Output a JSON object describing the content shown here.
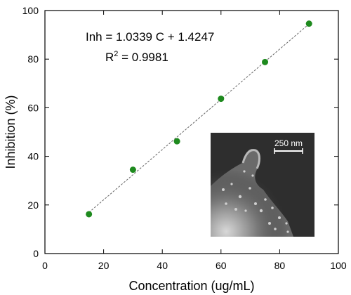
{
  "chart_data": {
    "type": "scatter",
    "xlabel": "Concentration (ug/mL)",
    "ylabel": "Inhibition (%)",
    "xlim": [
      0,
      100
    ],
    "ylim": [
      0,
      100
    ],
    "x_ticks": [
      0,
      20,
      40,
      60,
      80,
      100
    ],
    "y_ticks": [
      0,
      20,
      40,
      60,
      80,
      100
    ],
    "x_tick_labels": [
      "0",
      "20",
      "40",
      "60",
      "80",
      "100"
    ],
    "y_tick_labels": [
      "0",
      "20",
      "40",
      "60",
      "80",
      "100"
    ],
    "grid": false,
    "series": [
      {
        "x": [
          15,
          30,
          45,
          60,
          75,
          90
        ],
        "y": [
          16.2,
          34.5,
          46.2,
          63.7,
          78.8,
          94.6
        ],
        "color": "#1e8a1e"
      }
    ],
    "fit_line": {
      "slope": 1.0339,
      "intercept": 1.4247,
      "x_range": [
        15,
        90
      ],
      "style": "dashed",
      "color": "#666666"
    },
    "annotations": {
      "equation": "Inh = 1.0339 C + 1.4247",
      "r2_prefix": "R",
      "r2_exponent": "2",
      "r2_value": " = 0.9981"
    },
    "inset": {
      "type": "micrograph",
      "scale_bar_label": "250 nm"
    }
  }
}
